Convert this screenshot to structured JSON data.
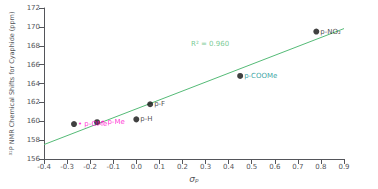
{
  "chart_data": {
    "type": "scatter",
    "xlabel": "σₚ",
    "ylabel": "³¹P NMR Chemical Shifts for Cyaphide (ppm)",
    "xlim": [
      -0.4,
      0.9
    ],
    "ylim": [
      156,
      172
    ],
    "xticks": [
      -0.4,
      -0.3,
      -0.2,
      -0.1,
      {
        "value": 0,
        "label": "0.0"
      },
      0.1,
      0.2,
      0.3,
      0.4,
      0.5,
      0.6,
      0.7,
      0.8,
      0.9
    ],
    "yticks": [
      156,
      158,
      160,
      162,
      164,
      166,
      168,
      170,
      172
    ],
    "grid": false,
    "series": [
      {
        "type": "line",
        "color": "#55BB77",
        "x": [
          -0.4,
          0.9
        ],
        "values": [
          157.5296,
          169.8185
        ]
      },
      {
        "type": "scatter",
        "color": "#111111",
        "x": [
          -0.27,
          -0.17,
          0.0,
          0.06,
          0.45,
          0.78
        ],
        "values": [
          159.7,
          159.9,
          160.2,
          161.8,
          164.8,
          169.5
        ]
      }
    ],
    "annotations": [
      {
        "text": "• p-OMe",
        "x": -0.27,
        "y": 159.7,
        "color": "#FF00CC"
      },
      {
        "text": "• p-Me",
        "x": -0.17,
        "y": 159.9,
        "color": "#FF00CC"
      },
      {
        "text": "p-H",
        "x": 0.0,
        "y": 160.2,
        "color": "#222222"
      },
      {
        "text": "p-F",
        "x": 0.06,
        "y": 161.8,
        "color": "#222222"
      },
      {
        "text": "p-COOMe",
        "x": 0.45,
        "y": 164.8,
        "color": "#008B8B"
      },
      {
        "text": "p-NO₂",
        "x": 0.78,
        "y": 169.5,
        "color": "#222222"
      },
      {
        "text": "R² = 0.960",
        "x": 0.22,
        "y": 168.2,
        "color": "#55BB77"
      }
    ]
  }
}
